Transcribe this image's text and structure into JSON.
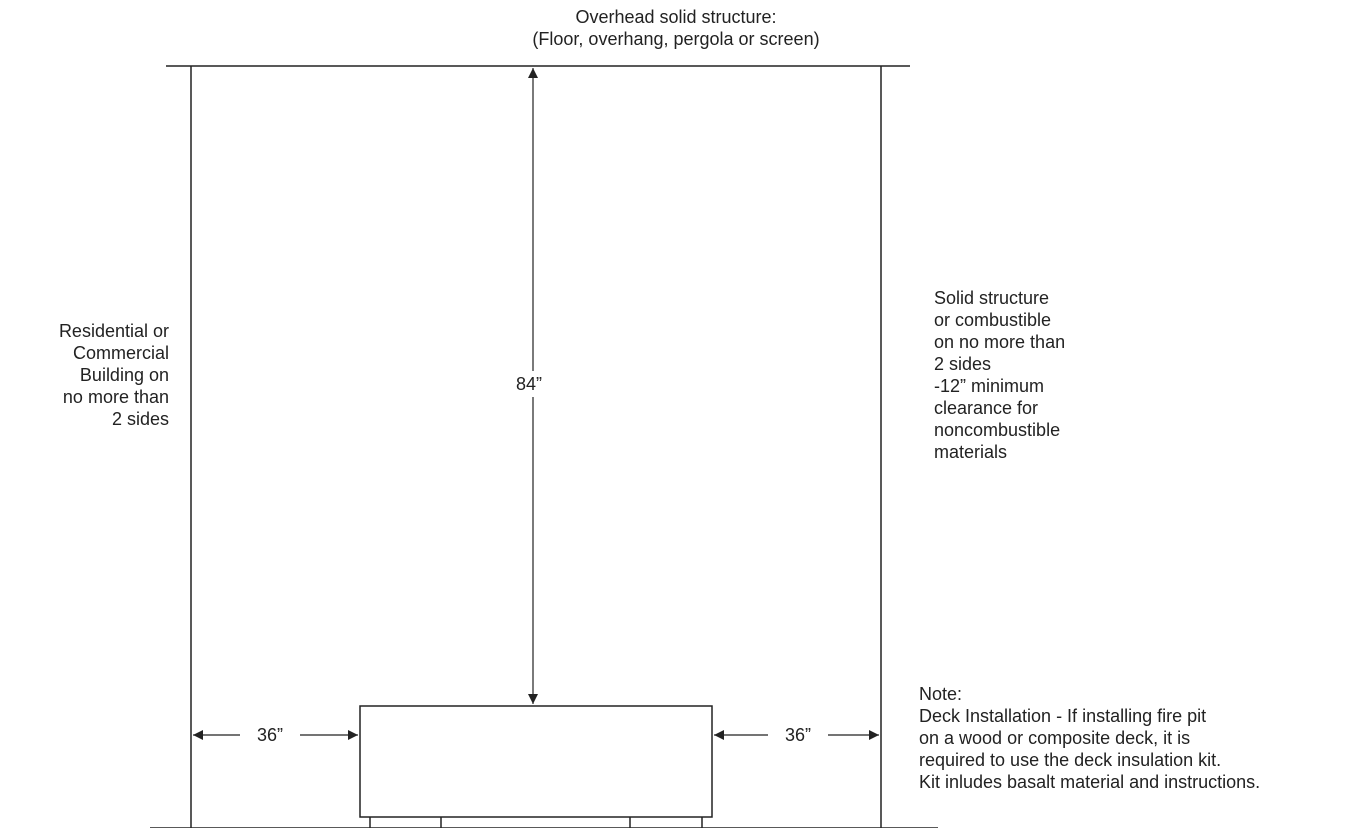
{
  "overhead": {
    "line1": "Overhead solid structure:",
    "line2": "(Floor, overhang, pergola or screen)"
  },
  "left_side": {
    "lines": [
      "Residential or",
      "Commercial",
      "Building on",
      "no more than",
      "2 sides"
    ]
  },
  "right_side": {
    "lines": [
      "Solid structure",
      "or combustible",
      "on no more than",
      "2 sides",
      "-12” minimum",
      "clearance for",
      "noncombustible",
      "materials"
    ]
  },
  "note": {
    "title": "Note:",
    "lines": [
      "Deck Installation - If installing fire pit",
      "on a wood or composite deck, it is",
      "required to use the deck insulation kit.",
      "Kit inludes basalt material and instructions."
    ]
  },
  "dimensions": {
    "vertical": "84”",
    "left": "36”",
    "right": "36”"
  },
  "colors": {
    "line": "#222222",
    "text": "#222222",
    "background": "#ffffff"
  }
}
